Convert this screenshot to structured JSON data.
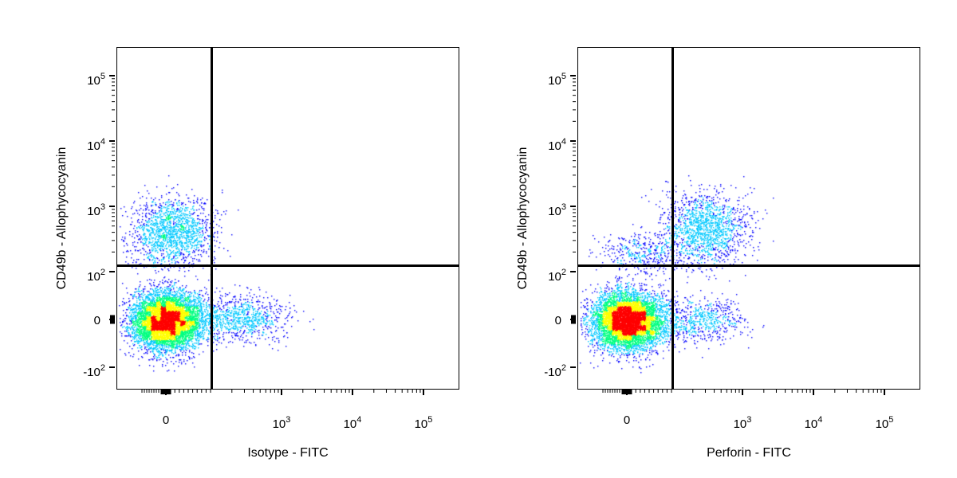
{
  "chart_data": [
    {
      "type": "scatter",
      "subtype": "flow-cytometry-density-plot",
      "xlabel": "Isotype - FITC",
      "ylabel": "CD49b - Allophycocyanin",
      "x_scale": "biexponential",
      "y_scale": "biexponential",
      "x_ticks": [
        {
          "value": 0,
          "base": "0",
          "exp": ""
        },
        {
          "value": 1000,
          "base": "10",
          "exp": "3"
        },
        {
          "value": 10000,
          "base": "10",
          "exp": "4"
        },
        {
          "value": 100000,
          "base": "10",
          "exp": "5"
        }
      ],
      "y_ticks": [
        {
          "value": 100000,
          "base": "10",
          "exp": "5"
        },
        {
          "value": 10000,
          "base": "10",
          "exp": "4"
        },
        {
          "value": 1000,
          "base": "10",
          "exp": "3"
        },
        {
          "value": 100,
          "base": "10",
          "exp": "2"
        },
        {
          "value": 0,
          "base": "0",
          "exp": ""
        },
        {
          "value": -100,
          "base": "-10",
          "exp": "2"
        }
      ],
      "gates": {
        "x": 100,
        "y": 130
      },
      "populations": [
        {
          "x_center": 0,
          "y_center": 0,
          "spread": "dense",
          "relative_count": 0.72
        },
        {
          "x_center": 10,
          "y_center": 400,
          "spread": "medium",
          "relative_count": 0.18
        },
        {
          "x_center": 250,
          "y_center": 5,
          "spread": "sparse",
          "relative_count": 0.1
        }
      ],
      "colormap": [
        "#0000ff",
        "#00c8ff",
        "#00ff80",
        "#ffff00",
        "#ff0000"
      ]
    },
    {
      "type": "scatter",
      "subtype": "flow-cytometry-density-plot",
      "xlabel": "Perforin - FITC",
      "ylabel": "CD49b - Allophycocyanin",
      "x_scale": "biexponential",
      "y_scale": "biexponential",
      "x_ticks": [
        {
          "value": 0,
          "base": "0",
          "exp": ""
        },
        {
          "value": 1000,
          "base": "10",
          "exp": "3"
        },
        {
          "value": 10000,
          "base": "10",
          "exp": "4"
        },
        {
          "value": 100000,
          "base": "10",
          "exp": "5"
        }
      ],
      "y_ticks": [
        {
          "value": 100000,
          "base": "10",
          "exp": "5"
        },
        {
          "value": 10000,
          "base": "10",
          "exp": "4"
        },
        {
          "value": 1000,
          "base": "10",
          "exp": "3"
        },
        {
          "value": 100,
          "base": "10",
          "exp": "2"
        },
        {
          "value": 0,
          "base": "0",
          "exp": ""
        },
        {
          "value": -100,
          "base": "-10",
          "exp": "2"
        }
      ],
      "gates": {
        "x": 100,
        "y": 130
      },
      "populations": [
        {
          "x_center": 0,
          "y_center": 0,
          "spread": "dense",
          "relative_count": 0.72
        },
        {
          "x_center": 300,
          "y_center": 500,
          "spread": "medium",
          "relative_count": 0.16
        },
        {
          "x_center": 250,
          "y_center": 0,
          "spread": "sparse",
          "relative_count": 0.07
        },
        {
          "x_center": 40,
          "y_center": 200,
          "spread": "sparse",
          "relative_count": 0.05
        }
      ],
      "colormap": [
        "#0000ff",
        "#00c8ff",
        "#00ff80",
        "#ffff00",
        "#ff0000"
      ]
    }
  ]
}
